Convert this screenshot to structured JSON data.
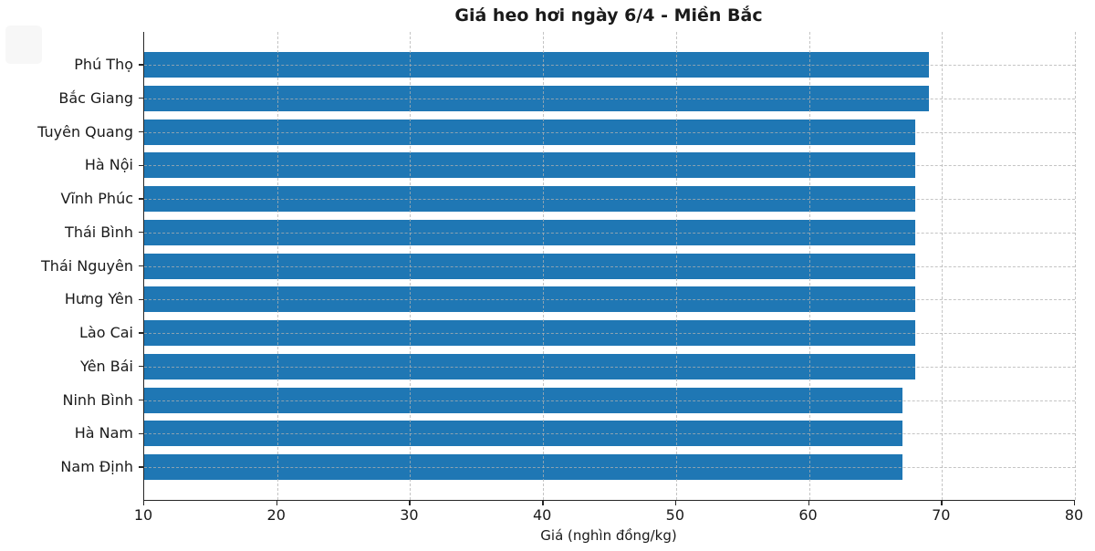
{
  "chart_data": {
    "type": "bar",
    "orientation": "horizontal",
    "title": "Giá heo hơi ngày 6/4 - Miền Bắc",
    "xlabel": "Giá (nghìn đồng/kg)",
    "ylabel": "",
    "categories": [
      "Phú Thọ",
      "Bắc Giang",
      "Tuyên Quang",
      "Hà Nội",
      "Vĩnh Phúc",
      "Thái Bình",
      "Thái Nguyên",
      "Hưng Yên",
      "Lào Cai",
      "Yên Bái",
      "Ninh Bình",
      "Hà Nam",
      "Nam Định"
    ],
    "values": [
      69,
      69,
      68,
      68,
      68,
      68,
      68,
      68,
      68,
      68,
      67,
      67,
      67
    ],
    "xlim": [
      10,
      80
    ],
    "xticks": [
      10,
      20,
      30,
      40,
      50,
      60,
      70,
      80
    ],
    "grid": true,
    "grid_style": "dashed",
    "legend": null,
    "colors": {
      "bar": "#1f77b4",
      "axis": "#262626",
      "text": "#1a1a1a",
      "grid": "#b0b0b0"
    }
  }
}
